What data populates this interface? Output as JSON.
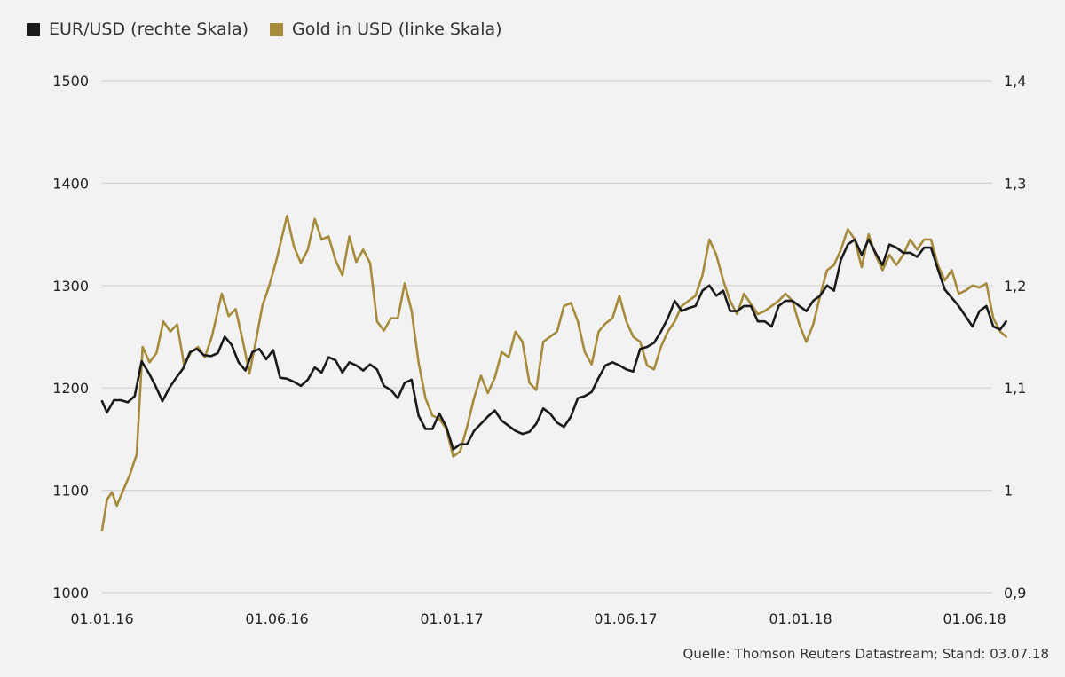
{
  "legend": {
    "eurusd_label": "EUR/USD (rechte Skala)",
    "gold_label": "Gold in USD (linke Skala)"
  },
  "source": "Quelle: Thomson Reuters Datastream; Stand: 03.07.18",
  "colors": {
    "eurusd": "#1a1a1a",
    "gold": "#a68b3c",
    "grid": "#d2d2d2",
    "background": "#f2f2f2"
  },
  "chart_data": {
    "type": "line",
    "title": "",
    "x_ticks": [
      "01.01.16",
      "01.06.16",
      "01.01.17",
      "01.06.17",
      "01.01.18",
      "01.06.18"
    ],
    "x_range": [
      "2016-01-01",
      "2018-07-03"
    ],
    "y_left": {
      "label": "",
      "range": [
        1000,
        1500
      ],
      "ticks": [
        "1000",
        "1100",
        "1200",
        "1300",
        "1400",
        "1500"
      ]
    },
    "y_right": {
      "label": "",
      "range": [
        0.9,
        1.4
      ],
      "ticks": [
        "0,9",
        "1",
        "1,1",
        "1,2",
        "1,3",
        "1,4"
      ]
    },
    "grid": true,
    "legend_position": "top-left",
    "series": [
      {
        "name": "Gold in USD (linke Skala)",
        "axis": "left",
        "color": "#a68b3c",
        "points": [
          [
            "2016-01-01",
            1061
          ],
          [
            "2016-01-06",
            1091
          ],
          [
            "2016-01-11",
            1098
          ],
          [
            "2016-01-16",
            1085
          ],
          [
            "2016-01-21",
            1097
          ],
          [
            "2016-01-29",
            1115
          ],
          [
            "2016-02-05",
            1135
          ],
          [
            "2016-02-11",
            1240
          ],
          [
            "2016-02-18",
            1225
          ],
          [
            "2016-02-25",
            1234
          ],
          [
            "2016-03-03",
            1265
          ],
          [
            "2016-03-10",
            1255
          ],
          [
            "2016-03-17",
            1262
          ],
          [
            "2016-03-24",
            1222
          ],
          [
            "2016-03-31",
            1235
          ],
          [
            "2016-04-07",
            1240
          ],
          [
            "2016-04-14",
            1230
          ],
          [
            "2016-04-21",
            1250
          ],
          [
            "2016-05-01",
            1292
          ],
          [
            "2016-05-08",
            1270
          ],
          [
            "2016-05-15",
            1277
          ],
          [
            "2016-05-22",
            1247
          ],
          [
            "2016-05-29",
            1214
          ],
          [
            "2016-06-04",
            1243
          ],
          [
            "2016-06-11",
            1280
          ],
          [
            "2016-06-18",
            1300
          ],
          [
            "2016-06-25",
            1324
          ],
          [
            "2016-07-06",
            1368
          ],
          [
            "2016-07-13",
            1338
          ],
          [
            "2016-07-20",
            1322
          ],
          [
            "2016-07-27",
            1335
          ],
          [
            "2016-08-03",
            1365
          ],
          [
            "2016-08-10",
            1345
          ],
          [
            "2016-08-17",
            1348
          ],
          [
            "2016-08-24",
            1325
          ],
          [
            "2016-08-31",
            1310
          ],
          [
            "2016-09-07",
            1348
          ],
          [
            "2016-09-14",
            1323
          ],
          [
            "2016-09-21",
            1335
          ],
          [
            "2016-09-28",
            1322
          ],
          [
            "2016-10-05",
            1265
          ],
          [
            "2016-10-12",
            1256
          ],
          [
            "2016-10-19",
            1268
          ],
          [
            "2016-10-26",
            1268
          ],
          [
            "2016-11-02",
            1302
          ],
          [
            "2016-11-09",
            1275
          ],
          [
            "2016-11-16",
            1225
          ],
          [
            "2016-11-23",
            1190
          ],
          [
            "2016-11-30",
            1173
          ],
          [
            "2016-12-07",
            1170
          ],
          [
            "2016-12-14",
            1160
          ],
          [
            "2016-12-21",
            1133
          ],
          [
            "2016-12-28",
            1138
          ],
          [
            "2017-01-04",
            1162
          ],
          [
            "2017-01-11",
            1190
          ],
          [
            "2017-01-18",
            1212
          ],
          [
            "2017-01-25",
            1195
          ],
          [
            "2017-02-01",
            1210
          ],
          [
            "2017-02-08",
            1235
          ],
          [
            "2017-02-15",
            1230
          ],
          [
            "2017-02-22",
            1255
          ],
          [
            "2017-03-01",
            1245
          ],
          [
            "2017-03-08",
            1205
          ],
          [
            "2017-03-15",
            1198
          ],
          [
            "2017-03-22",
            1245
          ],
          [
            "2017-03-29",
            1250
          ],
          [
            "2017-04-05",
            1255
          ],
          [
            "2017-04-12",
            1280
          ],
          [
            "2017-04-19",
            1283
          ],
          [
            "2017-04-26",
            1265
          ],
          [
            "2017-05-03",
            1235
          ],
          [
            "2017-05-10",
            1223
          ],
          [
            "2017-05-17",
            1255
          ],
          [
            "2017-05-24",
            1263
          ],
          [
            "2017-05-31",
            1268
          ],
          [
            "2017-06-07",
            1290
          ],
          [
            "2017-06-14",
            1265
          ],
          [
            "2017-06-21",
            1250
          ],
          [
            "2017-06-28",
            1245
          ],
          [
            "2017-07-05",
            1222
          ],
          [
            "2017-07-12",
            1218
          ],
          [
            "2017-07-19",
            1240
          ],
          [
            "2017-07-26",
            1255
          ],
          [
            "2017-08-02",
            1265
          ],
          [
            "2017-08-09",
            1280
          ],
          [
            "2017-08-16",
            1285
          ],
          [
            "2017-08-23",
            1290
          ],
          [
            "2017-08-30",
            1310
          ],
          [
            "2017-09-06",
            1345
          ],
          [
            "2017-09-13",
            1330
          ],
          [
            "2017-09-20",
            1305
          ],
          [
            "2017-09-27",
            1285
          ],
          [
            "2017-10-04",
            1272
          ],
          [
            "2017-10-11",
            1292
          ],
          [
            "2017-10-18",
            1282
          ],
          [
            "2017-10-25",
            1272
          ],
          [
            "2017-11-01",
            1275
          ],
          [
            "2017-11-08",
            1280
          ],
          [
            "2017-11-15",
            1285
          ],
          [
            "2017-11-22",
            1292
          ],
          [
            "2017-11-29",
            1285
          ],
          [
            "2017-12-06",
            1262
          ],
          [
            "2017-12-13",
            1245
          ],
          [
            "2017-12-20",
            1262
          ],
          [
            "2017-12-27",
            1290
          ],
          [
            "2018-01-03",
            1315
          ],
          [
            "2018-01-10",
            1320
          ],
          [
            "2018-01-17",
            1335
          ],
          [
            "2018-01-24",
            1355
          ],
          [
            "2018-01-31",
            1345
          ],
          [
            "2018-02-07",
            1318
          ],
          [
            "2018-02-14",
            1350
          ],
          [
            "2018-02-21",
            1330
          ],
          [
            "2018-02-28",
            1315
          ],
          [
            "2018-03-07",
            1330
          ],
          [
            "2018-03-14",
            1320
          ],
          [
            "2018-03-21",
            1330
          ],
          [
            "2018-03-28",
            1345
          ],
          [
            "2018-04-04",
            1335
          ],
          [
            "2018-04-11",
            1345
          ],
          [
            "2018-04-18",
            1345
          ],
          [
            "2018-04-25",
            1320
          ],
          [
            "2018-05-02",
            1305
          ],
          [
            "2018-05-09",
            1315
          ],
          [
            "2018-05-16",
            1292
          ],
          [
            "2018-05-23",
            1295
          ],
          [
            "2018-05-30",
            1300
          ],
          [
            "2018-06-06",
            1298
          ],
          [
            "2018-06-13",
            1302
          ],
          [
            "2018-06-20",
            1268
          ],
          [
            "2018-06-27",
            1255
          ],
          [
            "2018-07-03",
            1250
          ]
        ]
      },
      {
        "name": "EUR/USD (rechte Skala)",
        "axis": "right",
        "color": "#1a1a1a",
        "points": [
          [
            "2016-01-01",
            1.087
          ],
          [
            "2016-01-06",
            1.076
          ],
          [
            "2016-01-13",
            1.088
          ],
          [
            "2016-01-20",
            1.088
          ],
          [
            "2016-01-27",
            1.086
          ],
          [
            "2016-02-03",
            1.092
          ],
          [
            "2016-02-10",
            1.126
          ],
          [
            "2016-02-17",
            1.115
          ],
          [
            "2016-02-24",
            1.102
          ],
          [
            "2016-03-02",
            1.087
          ],
          [
            "2016-03-09",
            1.1
          ],
          [
            "2016-03-16",
            1.11
          ],
          [
            "2016-03-23",
            1.119
          ],
          [
            "2016-03-30",
            1.135
          ],
          [
            "2016-04-06",
            1.138
          ],
          [
            "2016-04-13",
            1.132
          ],
          [
            "2016-04-20",
            1.131
          ],
          [
            "2016-04-27",
            1.134
          ],
          [
            "2016-05-04",
            1.15
          ],
          [
            "2016-05-11",
            1.142
          ],
          [
            "2016-05-18",
            1.125
          ],
          [
            "2016-05-25",
            1.117
          ],
          [
            "2016-06-01",
            1.135
          ],
          [
            "2016-06-08",
            1.138
          ],
          [
            "2016-06-15",
            1.128
          ],
          [
            "2016-06-22",
            1.137
          ],
          [
            "2016-06-29",
            1.11
          ],
          [
            "2016-07-06",
            1.109
          ],
          [
            "2016-07-13",
            1.106
          ],
          [
            "2016-07-20",
            1.102
          ],
          [
            "2016-07-27",
            1.108
          ],
          [
            "2016-08-03",
            1.12
          ],
          [
            "2016-08-10",
            1.115
          ],
          [
            "2016-08-17",
            1.13
          ],
          [
            "2016-08-24",
            1.127
          ],
          [
            "2016-08-31",
            1.115
          ],
          [
            "2016-09-07",
            1.125
          ],
          [
            "2016-09-14",
            1.122
          ],
          [
            "2016-09-21",
            1.117
          ],
          [
            "2016-09-28",
            1.123
          ],
          [
            "2016-10-05",
            1.118
          ],
          [
            "2016-10-12",
            1.102
          ],
          [
            "2016-10-19",
            1.098
          ],
          [
            "2016-10-26",
            1.09
          ],
          [
            "2016-11-02",
            1.105
          ],
          [
            "2016-11-09",
            1.108
          ],
          [
            "2016-11-16",
            1.073
          ],
          [
            "2016-11-23",
            1.06
          ],
          [
            "2016-11-30",
            1.06
          ],
          [
            "2016-12-07",
            1.075
          ],
          [
            "2016-12-14",
            1.062
          ],
          [
            "2016-12-21",
            1.04
          ],
          [
            "2016-12-28",
            1.045
          ],
          [
            "2017-01-04",
            1.045
          ],
          [
            "2017-01-11",
            1.058
          ],
          [
            "2017-01-18",
            1.065
          ],
          [
            "2017-01-25",
            1.072
          ],
          [
            "2017-02-01",
            1.078
          ],
          [
            "2017-02-08",
            1.068
          ],
          [
            "2017-02-15",
            1.063
          ],
          [
            "2017-02-22",
            1.058
          ],
          [
            "2017-03-01",
            1.055
          ],
          [
            "2017-03-08",
            1.057
          ],
          [
            "2017-03-15",
            1.065
          ],
          [
            "2017-03-22",
            1.08
          ],
          [
            "2017-03-29",
            1.075
          ],
          [
            "2017-04-05",
            1.066
          ],
          [
            "2017-04-12",
            1.062
          ],
          [
            "2017-04-19",
            1.072
          ],
          [
            "2017-04-26",
            1.09
          ],
          [
            "2017-05-03",
            1.092
          ],
          [
            "2017-05-10",
            1.096
          ],
          [
            "2017-05-17",
            1.11
          ],
          [
            "2017-05-24",
            1.122
          ],
          [
            "2017-05-31",
            1.125
          ],
          [
            "2017-06-07",
            1.122
          ],
          [
            "2017-06-14",
            1.118
          ],
          [
            "2017-06-21",
            1.116
          ],
          [
            "2017-06-28",
            1.138
          ],
          [
            "2017-07-05",
            1.14
          ],
          [
            "2017-07-12",
            1.144
          ],
          [
            "2017-07-19",
            1.155
          ],
          [
            "2017-07-26",
            1.168
          ],
          [
            "2017-08-02",
            1.185
          ],
          [
            "2017-08-09",
            1.175
          ],
          [
            "2017-08-16",
            1.178
          ],
          [
            "2017-08-23",
            1.18
          ],
          [
            "2017-08-30",
            1.195
          ],
          [
            "2017-09-06",
            1.2
          ],
          [
            "2017-09-13",
            1.19
          ],
          [
            "2017-09-20",
            1.195
          ],
          [
            "2017-09-27",
            1.175
          ],
          [
            "2017-10-04",
            1.175
          ],
          [
            "2017-10-11",
            1.18
          ],
          [
            "2017-10-18",
            1.18
          ],
          [
            "2017-10-25",
            1.165
          ],
          [
            "2017-11-01",
            1.165
          ],
          [
            "2017-11-08",
            1.16
          ],
          [
            "2017-11-15",
            1.18
          ],
          [
            "2017-11-22",
            1.185
          ],
          [
            "2017-11-29",
            1.185
          ],
          [
            "2017-12-06",
            1.18
          ],
          [
            "2017-12-13",
            1.175
          ],
          [
            "2017-12-20",
            1.185
          ],
          [
            "2017-12-27",
            1.19
          ],
          [
            "2018-01-03",
            1.2
          ],
          [
            "2018-01-10",
            1.195
          ],
          [
            "2018-01-17",
            1.225
          ],
          [
            "2018-01-24",
            1.24
          ],
          [
            "2018-01-31",
            1.245
          ],
          [
            "2018-02-07",
            1.23
          ],
          [
            "2018-02-14",
            1.245
          ],
          [
            "2018-02-21",
            1.232
          ],
          [
            "2018-02-28",
            1.22
          ],
          [
            "2018-03-07",
            1.24
          ],
          [
            "2018-03-14",
            1.237
          ],
          [
            "2018-03-21",
            1.232
          ],
          [
            "2018-03-28",
            1.232
          ],
          [
            "2018-04-04",
            1.228
          ],
          [
            "2018-04-11",
            1.237
          ],
          [
            "2018-04-18",
            1.237
          ],
          [
            "2018-04-25",
            1.216
          ],
          [
            "2018-05-02",
            1.196
          ],
          [
            "2018-05-09",
            1.188
          ],
          [
            "2018-05-16",
            1.18
          ],
          [
            "2018-05-23",
            1.17
          ],
          [
            "2018-05-30",
            1.16
          ],
          [
            "2018-06-06",
            1.175
          ],
          [
            "2018-06-13",
            1.18
          ],
          [
            "2018-06-20",
            1.16
          ],
          [
            "2018-06-27",
            1.157
          ],
          [
            "2018-07-03",
            1.165
          ]
        ]
      }
    ]
  }
}
